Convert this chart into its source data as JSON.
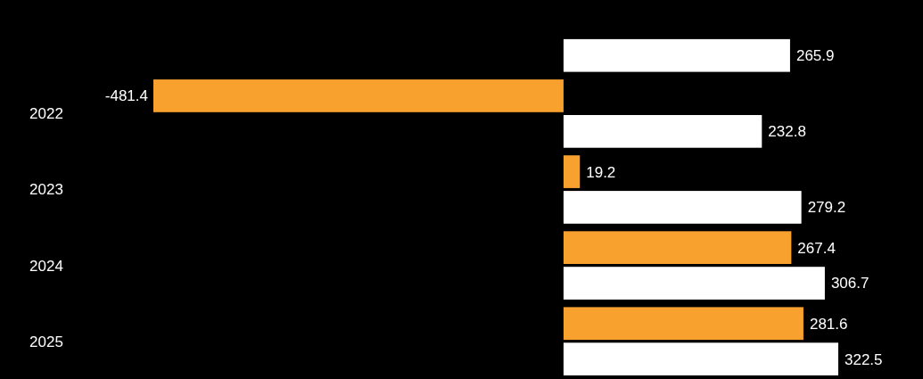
{
  "chart_data": {
    "type": "bar",
    "orientation": "horizontal",
    "categories": [
      null,
      "2022",
      "2023",
      "2024",
      "2025"
    ],
    "series": [
      {
        "color": "#f9a12e",
        "values": [
          null,
          -481.4,
          19.2,
          267.4,
          281.6
        ]
      },
      {
        "color": "#ffffff",
        "values": [
          265.9,
          232.8,
          279.2,
          306.7,
          322.5
        ]
      }
    ],
    "data_labels": true
  }
}
